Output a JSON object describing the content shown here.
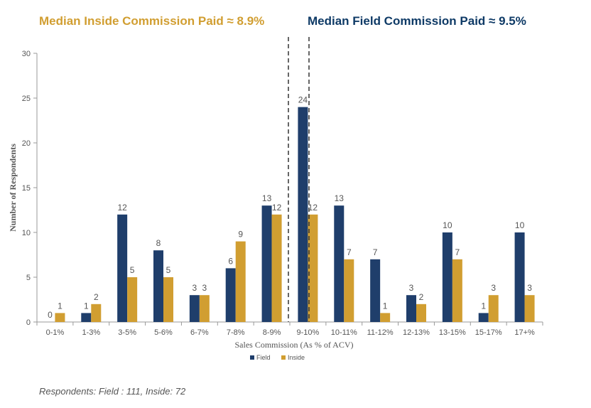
{
  "header": {
    "inside_text": "Median Inside Commission Paid ≈ 8.9%",
    "field_text": "Median Field Commission Paid ≈ 9.5%"
  },
  "colors": {
    "field": "#1F3E6B",
    "inside": "#D19E31",
    "inside_header": "#D19E31",
    "field_header": "#0E3A66"
  },
  "chart_data": {
    "type": "bar",
    "categories": [
      "0-1%",
      "1-3%",
      "3-5%",
      "5-6%",
      "6-7%",
      "7-8%",
      "8-9%",
      "9-10%",
      "10-11%",
      "11-12%",
      "12-13%",
      "13-15%",
      "15-17%",
      "17+%"
    ],
    "series": [
      {
        "name": "Field",
        "values": [
          0,
          1,
          12,
          8,
          3,
          6,
          13,
          24,
          13,
          7,
          3,
          10,
          1,
          10
        ]
      },
      {
        "name": "Inside",
        "values": [
          1,
          2,
          5,
          5,
          3,
          9,
          12,
          12,
          7,
          1,
          2,
          7,
          3,
          3
        ]
      }
    ],
    "xlabel": "Sales Commission (As % of ACV)",
    "ylabel": "Number of Respondents",
    "ylim": [
      0,
      30
    ],
    "yticks": [
      0,
      5,
      10,
      15,
      20,
      25,
      30
    ],
    "grid": false,
    "legend_position": "bottom-center",
    "median_lines": [
      {
        "name": "Inside",
        "value": 8.9
      },
      {
        "name": "Field",
        "value": 9.5
      }
    ]
  },
  "footnote": "Respondents: Field : 111, Inside: 72"
}
